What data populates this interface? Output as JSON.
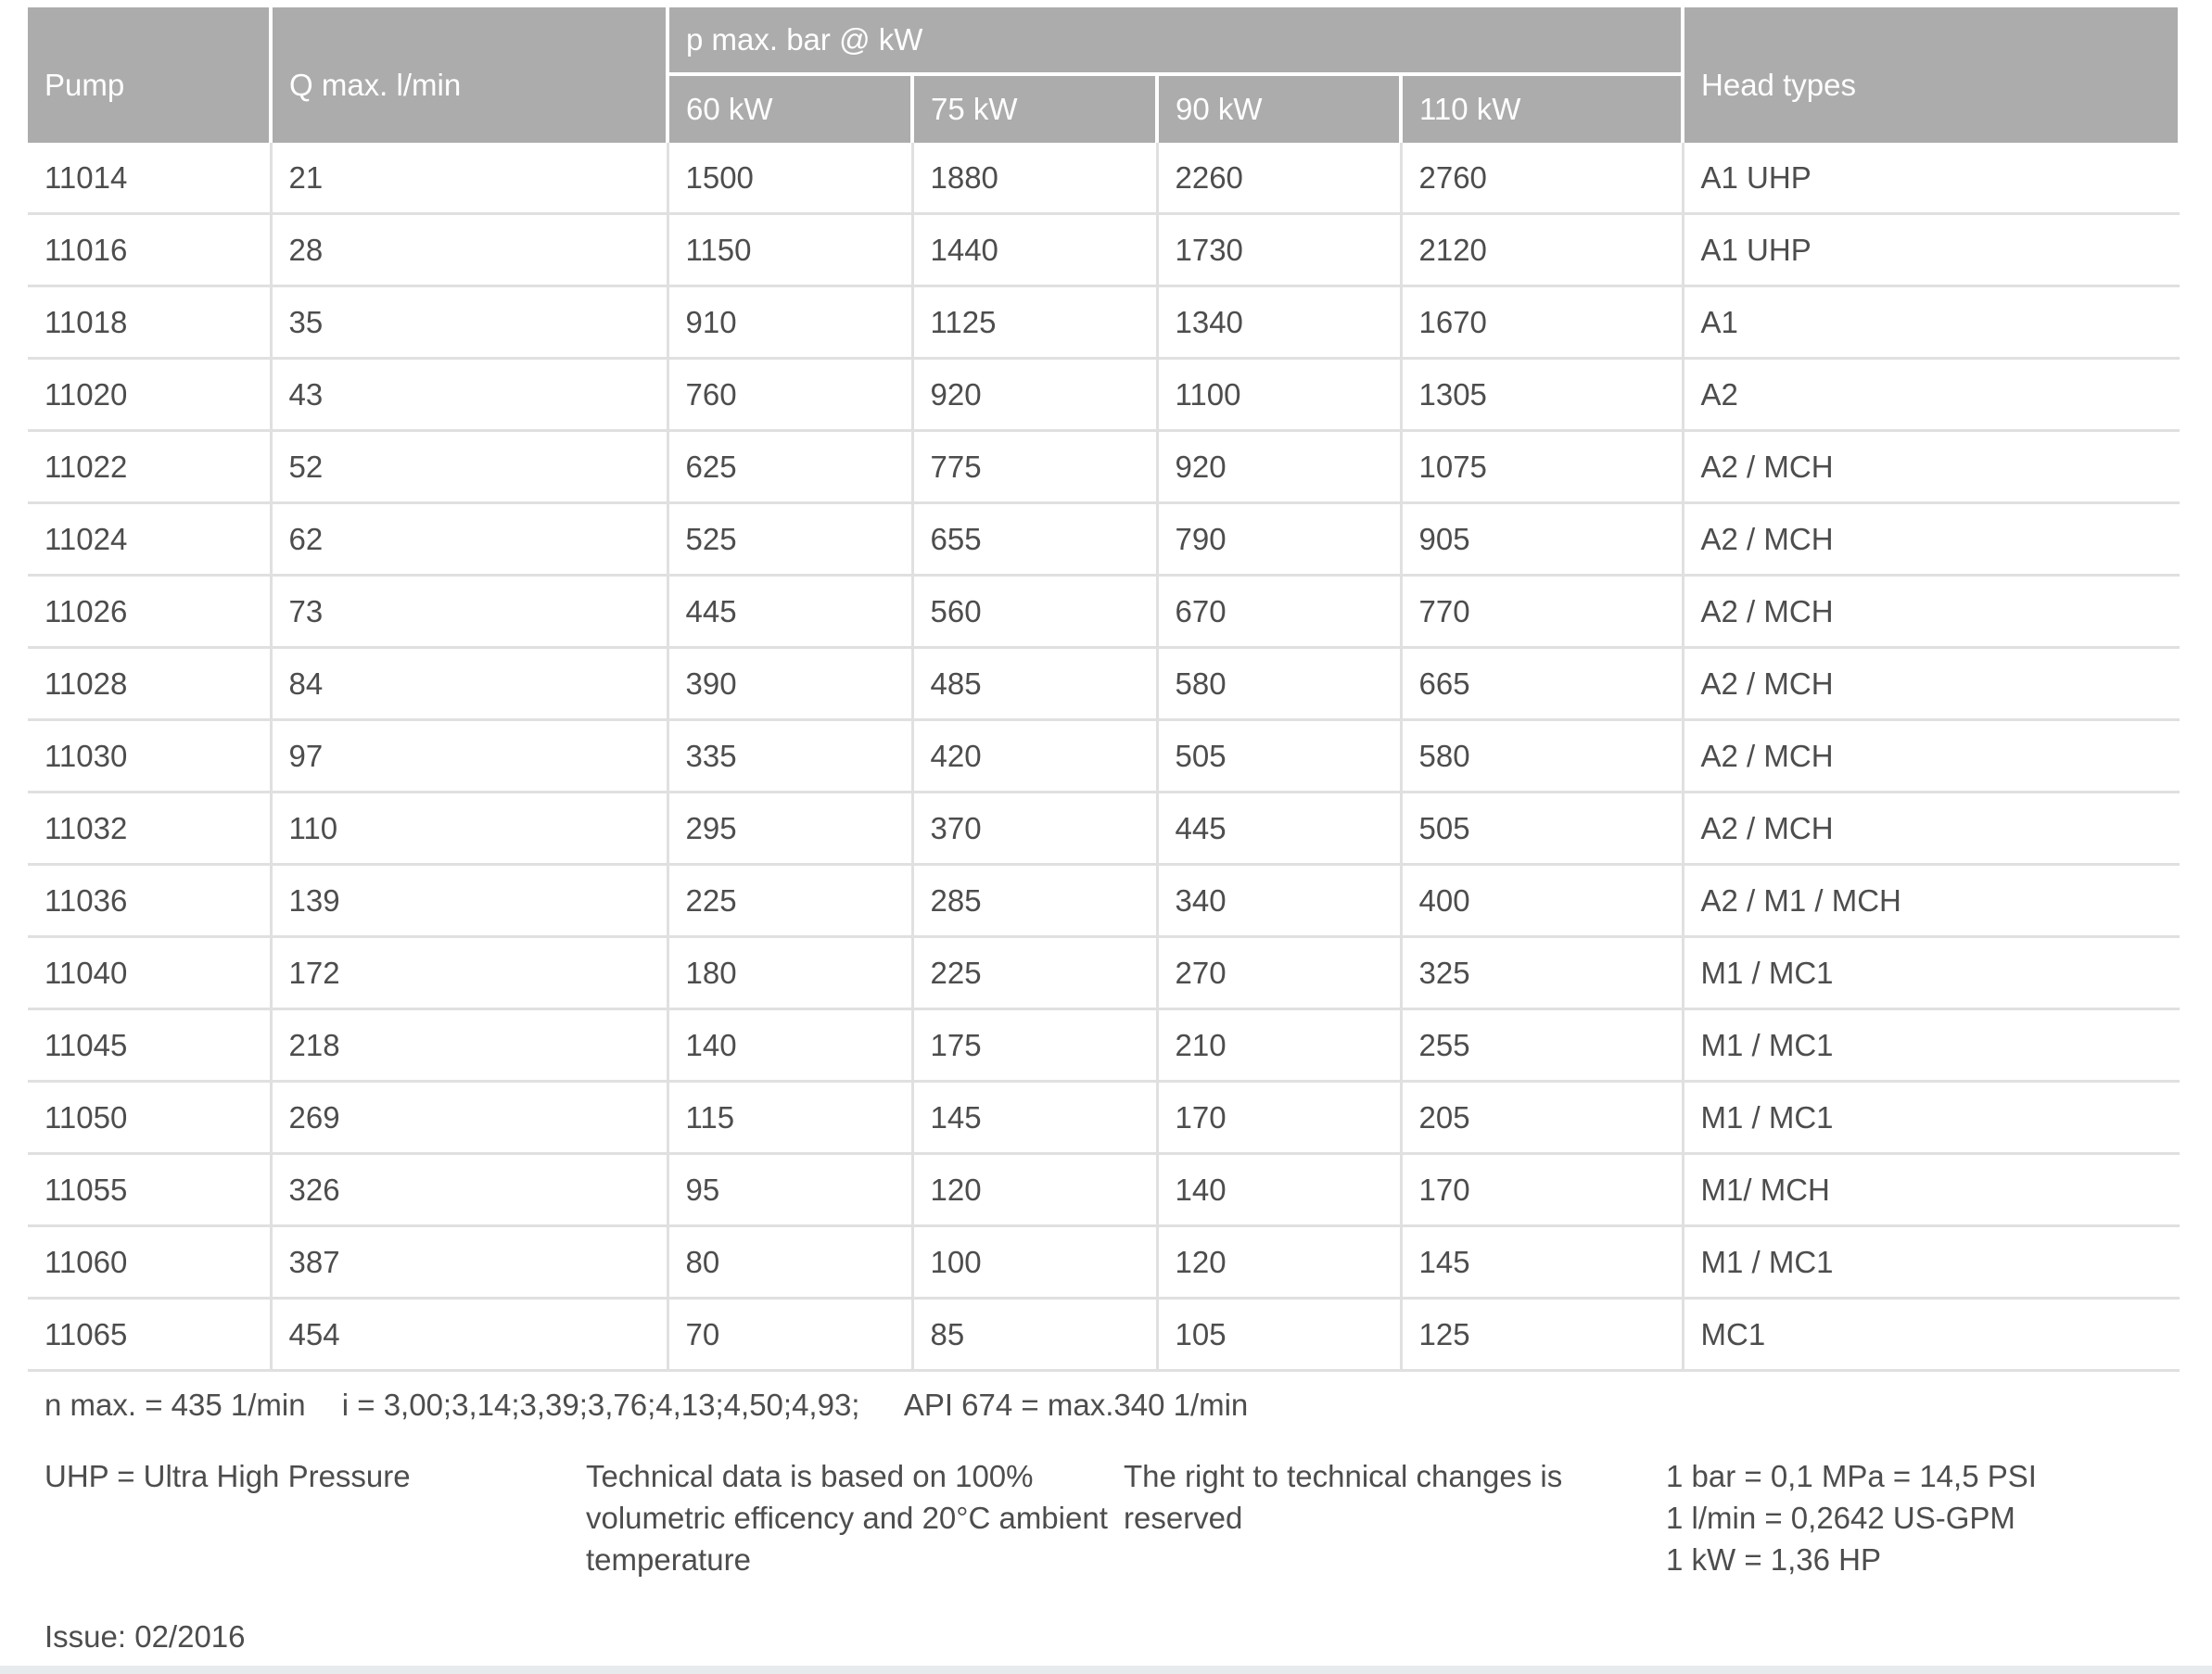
{
  "table": {
    "header": {
      "pump": "Pump",
      "q_max": "Q max. l/min",
      "p_max_group": "p max. bar @ kW",
      "kw_60": "60 kW",
      "kw_75": "75 kW",
      "kw_90": "90 kW",
      "kw_110": "110 kW",
      "head_types": "Head types"
    },
    "rows": [
      {
        "pump": "11014",
        "q_max": "21",
        "kw": [
          "1500",
          "1880",
          "2260",
          "2760"
        ],
        "head": "A1 UHP"
      },
      {
        "pump": "11016",
        "q_max": "28",
        "kw": [
          "1150",
          "1440",
          "1730",
          "2120"
        ],
        "head": "A1 UHP"
      },
      {
        "pump": "11018",
        "q_max": "35",
        "kw": [
          "910",
          "1125",
          "1340",
          "1670"
        ],
        "head": "A1"
      },
      {
        "pump": "11020",
        "q_max": "43",
        "kw": [
          "760",
          "920",
          "1100",
          "1305"
        ],
        "head": "A2"
      },
      {
        "pump": "11022",
        "q_max": "52",
        "kw": [
          "625",
          "775",
          "920",
          "1075"
        ],
        "head": "A2 / MCH"
      },
      {
        "pump": "11024",
        "q_max": "62",
        "kw": [
          "525",
          "655",
          "790",
          "905"
        ],
        "head": "A2 / MCH"
      },
      {
        "pump": "11026",
        "q_max": "73",
        "kw": [
          "445",
          "560",
          "670",
          "770"
        ],
        "head": "A2 / MCH"
      },
      {
        "pump": "11028",
        "q_max": "84",
        "kw": [
          "390",
          "485",
          "580",
          "665"
        ],
        "head": "A2 / MCH"
      },
      {
        "pump": "11030",
        "q_max": "97",
        "kw": [
          "335",
          "420",
          "505",
          "580"
        ],
        "head": "A2 / MCH"
      },
      {
        "pump": "11032",
        "q_max": "110",
        "kw": [
          "295",
          "370",
          "445",
          "505"
        ],
        "head": "A2 / MCH"
      },
      {
        "pump": "11036",
        "q_max": "139",
        "kw": [
          "225",
          "285",
          "340",
          "400"
        ],
        "head": "A2 / M1 / MCH"
      },
      {
        "pump": "11040",
        "q_max": "172",
        "kw": [
          "180",
          "225",
          "270",
          "325"
        ],
        "head": "M1 / MC1"
      },
      {
        "pump": "11045",
        "q_max": "218",
        "kw": [
          "140",
          "175",
          "210",
          "255"
        ],
        "head": "M1 / MC1"
      },
      {
        "pump": "11050",
        "q_max": "269",
        "kw": [
          "115",
          "145",
          "170",
          "205"
        ],
        "head": "M1 / MC1"
      },
      {
        "pump": "11055",
        "q_max": "326",
        "kw": [
          "95",
          "120",
          "140",
          "170"
        ],
        "head": "M1/ MCH"
      },
      {
        "pump": "11060",
        "q_max": "387",
        "kw": [
          "80",
          "100",
          "120",
          "145"
        ],
        "head": "M1 / MC1"
      },
      {
        "pump": "11065",
        "q_max": "454",
        "kw": [
          "70",
          "85",
          "105",
          "125"
        ],
        "head": "MC1"
      }
    ]
  },
  "notes": {
    "n_max": "n max. = 435 1/min",
    "i_ratios": "i = 3,00;3,14;3,39;3,76;4,13;4,50;4,93;",
    "api": "API 674 = max.340 1/min"
  },
  "footer": {
    "uhp": "UHP = Ultra High Pressure",
    "technical_lines": [
      "Technical data is based on 100%",
      "volumetric efficency and 20°C ambient",
      "temperature"
    ],
    "rights": "The right to technical changes is reserved",
    "conversions": [
      "1 bar = 0,1 MPa = 14,5 PSI",
      "1 l/min = 0,2642 US-GPM",
      "1 kW = 1,36 HP"
    ]
  },
  "issue": "Issue: 02/2016",
  "colors": {
    "header_bg": "#acacac",
    "header_text": "#ffffff",
    "body_text": "#4d4d4d",
    "row_border": "#e0e0e0",
    "bottom_bar": "#e8ebee"
  }
}
